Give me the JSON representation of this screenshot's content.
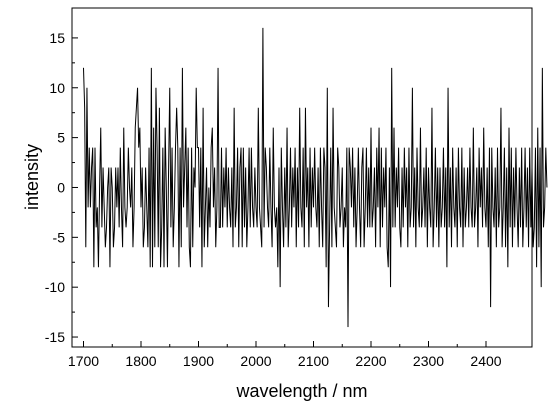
{
  "chart_data": {
    "type": "line",
    "title": "",
    "xlabel": "wavelength / nm",
    "ylabel": "intensity",
    "xlim": [
      1680,
      2480
    ],
    "ylim": [
      -16,
      18
    ],
    "x_ticks": [
      1700,
      1800,
      1900,
      2000,
      2100,
      2200,
      2300,
      2400
    ],
    "y_ticks": [
      -15,
      -10,
      -5,
      0,
      5,
      10,
      15
    ],
    "grid": false,
    "legend": "none",
    "line_color": "#000000",
    "series": [
      {
        "x_start": 1700,
        "x_step": 2,
        "values": [
          12,
          8,
          -6,
          10,
          -2,
          4,
          -2,
          2,
          4,
          -8,
          4,
          -4,
          -2,
          -8,
          0,
          6,
          -4,
          2,
          -2,
          -6,
          -4,
          0,
          2,
          -8,
          2,
          0,
          -6,
          -4,
          2,
          -2,
          2,
          -4,
          4,
          -2,
          -6,
          6,
          -2,
          -4,
          -2,
          4,
          0,
          -2,
          2,
          -6,
          -2,
          6,
          8,
          10,
          4,
          6,
          -2,
          2,
          -6,
          -4,
          2,
          -2,
          -6,
          4,
          -8,
          12,
          -8,
          6,
          -6,
          10,
          4,
          -6,
          8,
          -8,
          -4,
          4,
          -8,
          6,
          0,
          -8,
          2,
          10,
          -4,
          4,
          -6,
          -2,
          4,
          8,
          4,
          -8,
          4,
          -6,
          12,
          -2,
          2,
          6,
          -4,
          4,
          -6,
          -8,
          4,
          -6,
          2,
          0,
          10,
          4,
          4,
          -4,
          4,
          -8,
          8,
          -6,
          -2,
          2,
          -6,
          0,
          -4,
          4,
          6,
          -2,
          2,
          -6,
          -2,
          12,
          -4,
          -4,
          4,
          -4,
          2,
          -2,
          4,
          -4,
          2,
          -2,
          -4,
          2,
          -6,
          8,
          -4,
          -2,
          4,
          -6,
          2,
          4,
          -6,
          4,
          -4,
          2,
          -6,
          -2,
          4,
          -4,
          4,
          -2,
          -4,
          2,
          -2,
          -4,
          8,
          -2,
          -4,
          -6,
          16,
          -4,
          4,
          2,
          -2,
          -4,
          4,
          -2,
          -6,
          6,
          -2,
          -4,
          -2,
          -8,
          2,
          -10,
          4,
          -2,
          -6,
          2,
          -4,
          6,
          -6,
          -2,
          4,
          -4,
          2,
          -2,
          4,
          -6,
          2,
          -4,
          8,
          -2,
          -4,
          4,
          -6,
          8,
          -2,
          2,
          -6,
          4,
          -4,
          2,
          -2,
          4,
          -2,
          -4,
          2,
          -6,
          4,
          -2,
          -6,
          4,
          2,
          -8,
          10,
          -12,
          -4,
          4,
          -6,
          8,
          -2,
          -4,
          -6,
          4,
          2,
          -4,
          -2,
          2,
          -6,
          -2,
          -4,
          4,
          -14,
          4,
          2,
          -2,
          4,
          -4,
          2,
          -6,
          -2,
          4,
          -2,
          -6,
          2,
          4,
          -6,
          -2,
          4,
          -4,
          2,
          -4,
          6,
          -4,
          -2,
          2,
          -6,
          4,
          -2,
          6,
          -6,
          4,
          -4,
          2,
          -2,
          4,
          -6,
          -8,
          2,
          -10,
          12,
          -4,
          6,
          -4,
          2,
          -2,
          4,
          -4,
          -6,
          2,
          -4,
          4,
          -2,
          2,
          -6,
          4,
          -4,
          -2,
          10,
          -4,
          2,
          -6,
          4,
          -2,
          -4,
          6,
          -4,
          -2,
          2,
          -4,
          4,
          -6,
          2,
          -2,
          -4,
          8,
          -6,
          -2,
          4,
          -4,
          2,
          -6,
          2,
          -4,
          -2,
          4,
          -4,
          2,
          -8,
          10,
          -4,
          2,
          -6,
          4,
          -2,
          -4,
          2,
          -6,
          4,
          -2,
          -4,
          4,
          -6,
          2,
          -4,
          -2,
          2,
          -4,
          4,
          -2,
          -4,
          6,
          -4,
          -2,
          2,
          -6,
          4,
          -2,
          2,
          -4,
          6,
          -2,
          -4,
          2,
          -6,
          4,
          -12,
          4,
          -2,
          -4,
          2,
          -6,
          4,
          -4,
          -2,
          8,
          -6,
          -2,
          4,
          -6,
          2,
          -8,
          6,
          -4,
          4,
          -6,
          2,
          -4,
          4,
          -2,
          -6,
          2,
          -4,
          4,
          -6,
          -2,
          4,
          -4,
          2,
          -6,
          4,
          -4,
          2,
          -6,
          -4,
          4,
          -8,
          6,
          -6,
          4,
          -10,
          12,
          -4,
          -2,
          4,
          0
        ]
      }
    ]
  }
}
